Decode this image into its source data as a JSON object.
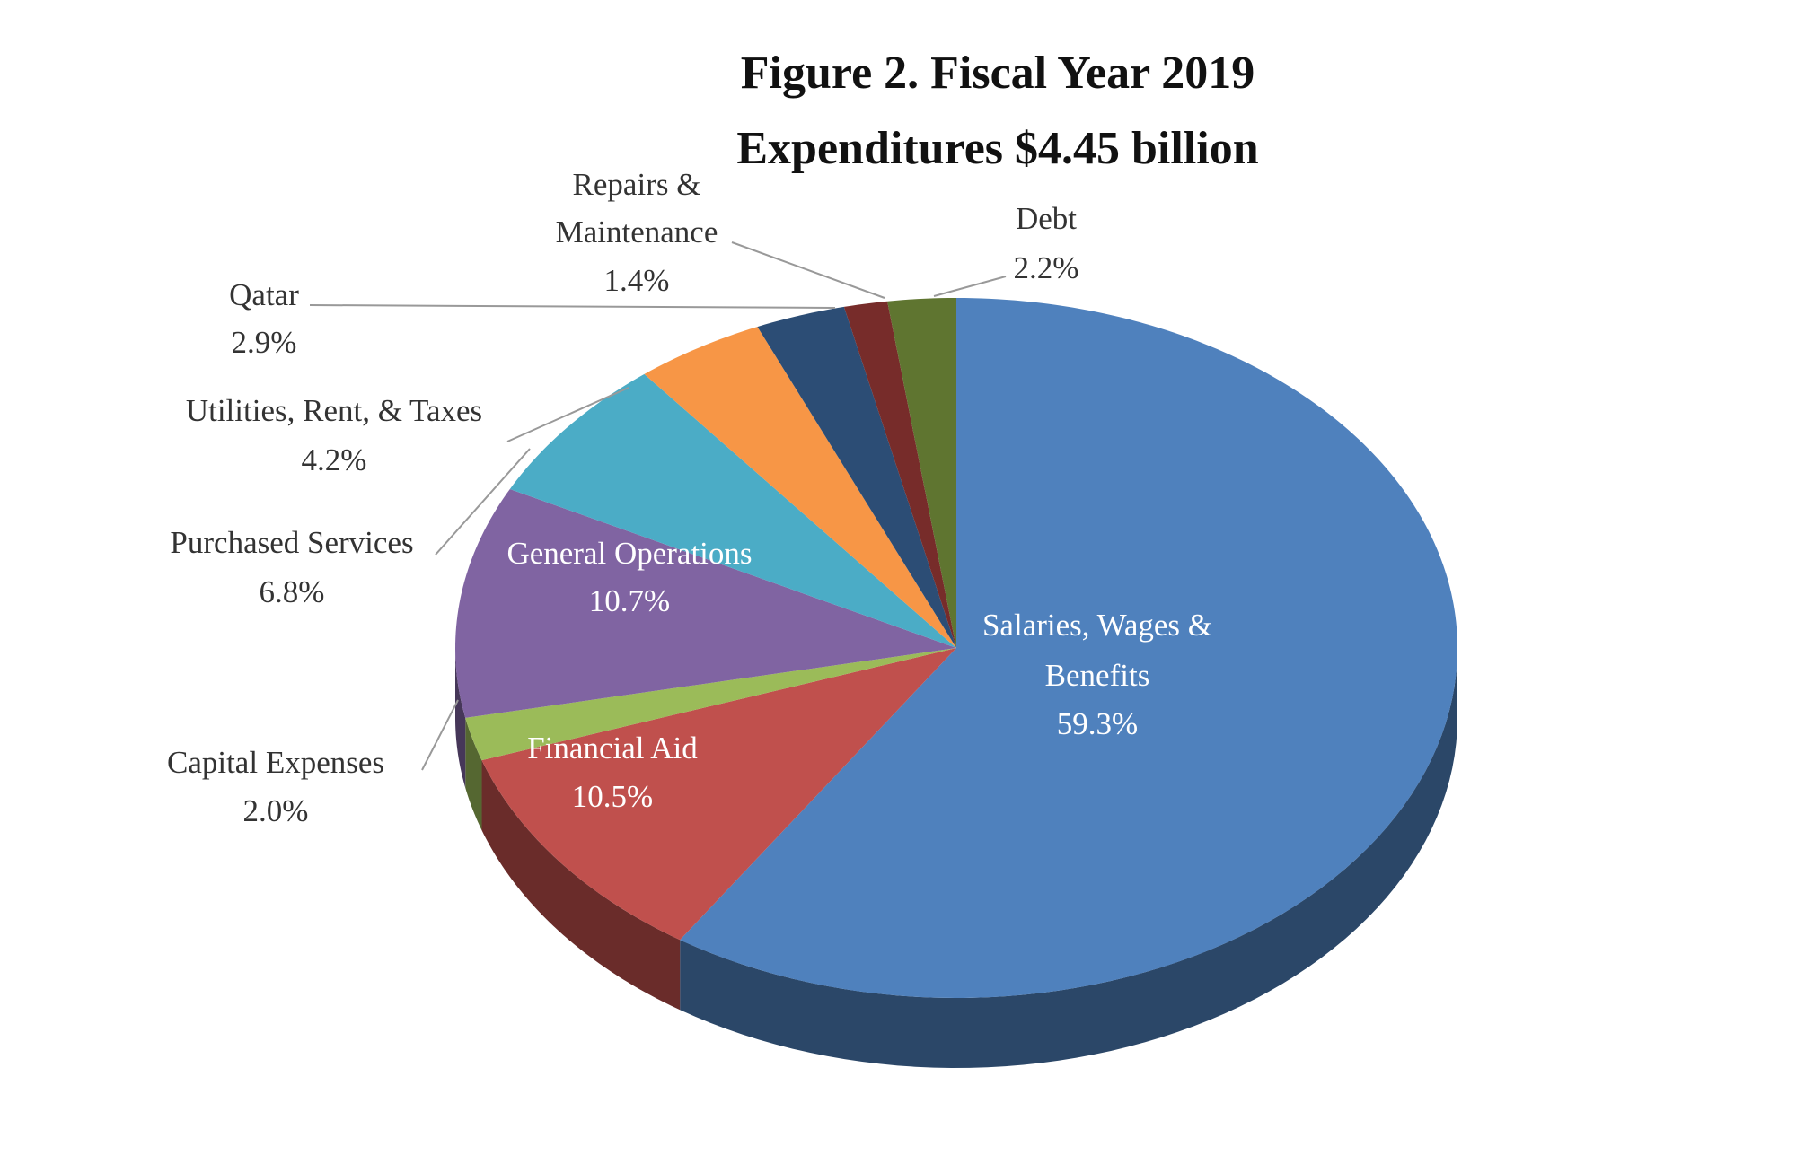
{
  "chart_data": {
    "type": "pie",
    "style": "3d",
    "title": [
      "Figure 2. Fiscal Year 2019",
      "Expenditures $4.45 billion"
    ],
    "start_angle": "12 o'clock",
    "direction": "clockwise",
    "slices": [
      {
        "label": "Salaries, Wages & Benefits",
        "label_lines": [
          "Salaries, Wages &",
          "Benefits"
        ],
        "value": 59.3,
        "display": "59.3%",
        "color": "#4F81BD"
      },
      {
        "label": "Financial Aid",
        "value": 10.5,
        "display": "10.5%",
        "color": "#C0504D"
      },
      {
        "label": "Capital Expenses",
        "value": 2.0,
        "display": "2.0%",
        "color": "#9BBB59"
      },
      {
        "label": "General Operations",
        "value": 10.7,
        "display": "10.7%",
        "color": "#8064A2"
      },
      {
        "label": "Purchased Services",
        "value": 6.8,
        "display": "6.8%",
        "color": "#4BACC6"
      },
      {
        "label": "Utilities, Rent, & Taxes",
        "value": 4.2,
        "display": "4.2%",
        "color": "#F79646"
      },
      {
        "label": "Qatar",
        "value": 2.9,
        "display": "2.9%",
        "color": "#2C4D75"
      },
      {
        "label": "Repairs & Maintenance",
        "label_lines": [
          "Repairs &",
          "Maintenance"
        ],
        "value": 1.4,
        "display": "1.4%",
        "color": "#772C2A"
      },
      {
        "label": "Debt",
        "value": 2.2,
        "display": "2.2%",
        "color": "#5F7530"
      }
    ]
  }
}
